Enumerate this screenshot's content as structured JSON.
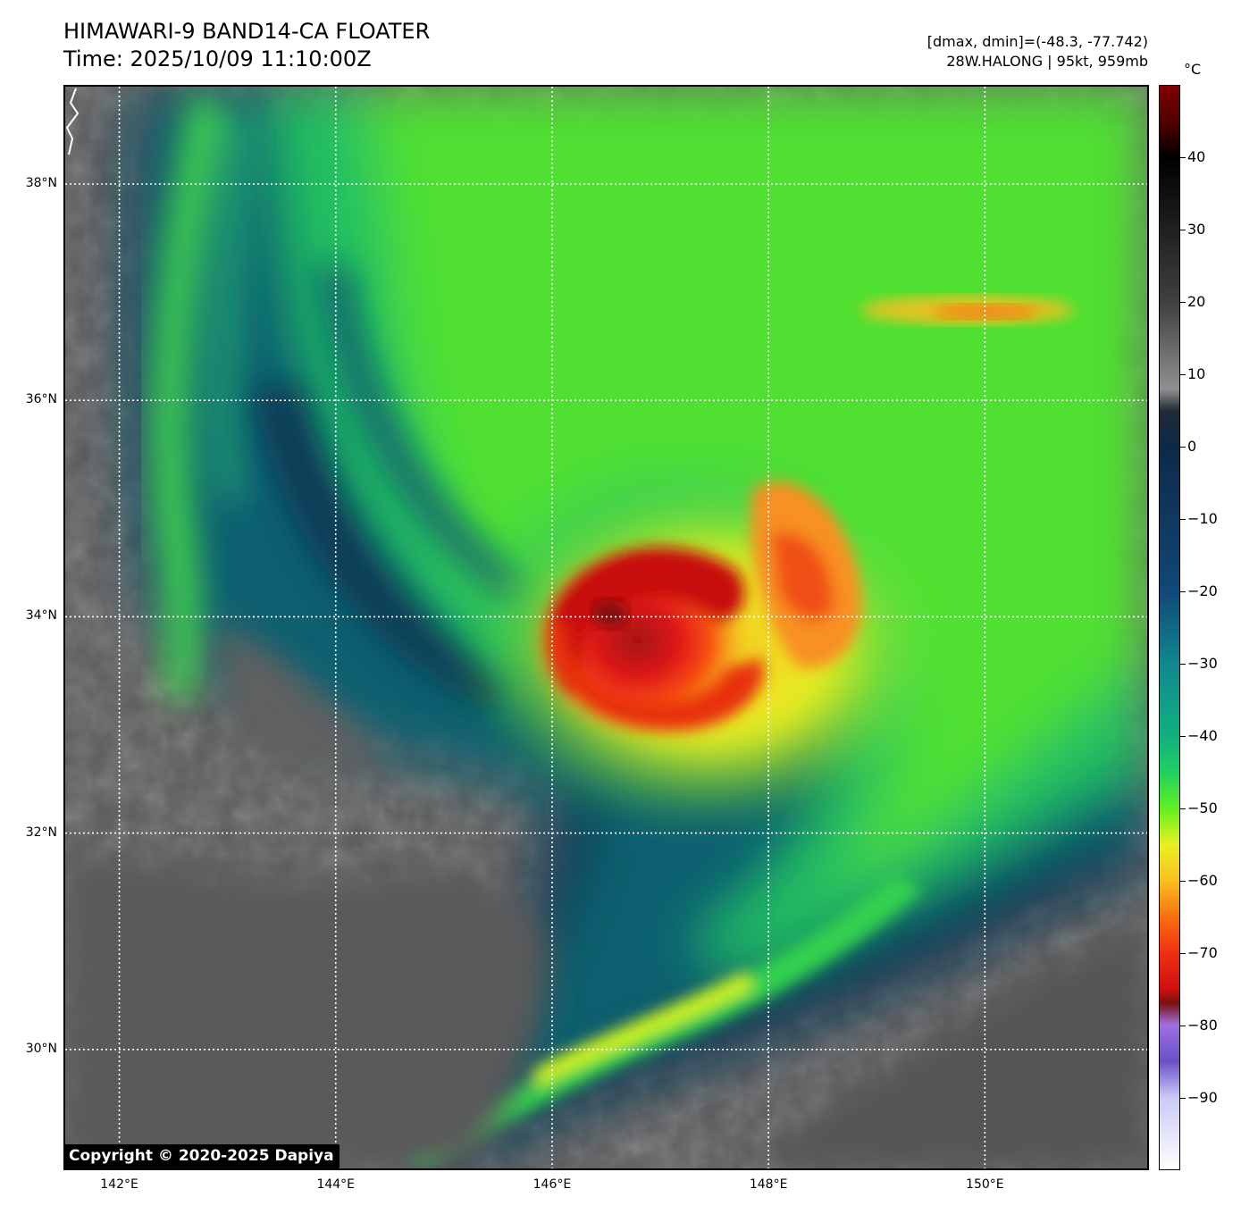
{
  "header": {
    "title_line1": "HIMAWARI-9 BAND14-CA FLOATER",
    "title_line2": "Time: 2025/10/09 11:10:00Z",
    "info_line1": "[dmax, dmin]=(-48.3, -77.742)",
    "info_line2": "28W.HALONG | 95kt, 959mb"
  },
  "map": {
    "extent": {
      "lon_min": 141.5,
      "lon_max": 151.5,
      "lat_min": 28.9,
      "lat_max": 38.9
    },
    "gridlines": "dotted white",
    "lat_ticks": [
      {
        "value": 38,
        "label": "38°N"
      },
      {
        "value": 36,
        "label": "36°N"
      },
      {
        "value": 34,
        "label": "34°N"
      },
      {
        "value": 32,
        "label": "32°N"
      },
      {
        "value": 30,
        "label": "30°N"
      }
    ],
    "lon_ticks": [
      {
        "value": 142,
        "label": "142°E"
      },
      {
        "value": 144,
        "label": "144°E"
      },
      {
        "value": 146,
        "label": "146°E"
      },
      {
        "value": 148,
        "label": "148°E"
      },
      {
        "value": 150,
        "label": "150°E"
      }
    ],
    "storm_center": {
      "lon": 146.5,
      "lat": 34.0
    },
    "copyright": "Copyright © 2020-2025 Dapiya"
  },
  "colorbar": {
    "unit": "°C",
    "range": [
      -100,
      50
    ],
    "ticks": [
      {
        "value": 40,
        "label": "40"
      },
      {
        "value": 30,
        "label": "30"
      },
      {
        "value": 20,
        "label": "20"
      },
      {
        "value": 10,
        "label": "10"
      },
      {
        "value": 0,
        "label": "0"
      },
      {
        "value": -10,
        "label": "−10"
      },
      {
        "value": -20,
        "label": "−20"
      },
      {
        "value": -30,
        "label": "−30"
      },
      {
        "value": -40,
        "label": "−40"
      },
      {
        "value": -50,
        "label": "−50"
      },
      {
        "value": -60,
        "label": "−60"
      },
      {
        "value": -70,
        "label": "−70"
      },
      {
        "value": -80,
        "label": "−80"
      },
      {
        "value": -90,
        "label": "−90"
      }
    ],
    "stops": [
      {
        "t": -100,
        "color": "#ffffff"
      },
      {
        "t": -90,
        "color": "#c8c8f4"
      },
      {
        "t": -85,
        "color": "#6a50c8"
      },
      {
        "t": -80,
        "color": "#a070e0"
      },
      {
        "t": -77,
        "color": "#7a1010"
      },
      {
        "t": -75,
        "color": "#d01010"
      },
      {
        "t": -70,
        "color": "#f03010"
      },
      {
        "t": -65,
        "color": "#f87010"
      },
      {
        "t": -60,
        "color": "#f8c020"
      },
      {
        "t": -55,
        "color": "#e8f020"
      },
      {
        "t": -50,
        "color": "#60f020"
      },
      {
        "t": -45,
        "color": "#20d060"
      },
      {
        "t": -40,
        "color": "#10b080"
      },
      {
        "t": -30,
        "color": "#108890"
      },
      {
        "t": -20,
        "color": "#104878"
      },
      {
        "t": -10,
        "color": "#103860"
      },
      {
        "t": 0,
        "color": "#0c2a48"
      },
      {
        "t": 5,
        "color": "#202a38"
      },
      {
        "t": 8,
        "color": "#909090"
      },
      {
        "t": 20,
        "color": "#404040"
      },
      {
        "t": 40,
        "color": "#000000"
      },
      {
        "t": 45,
        "color": "#500000"
      },
      {
        "t": 50,
        "color": "#800000"
      }
    ]
  }
}
